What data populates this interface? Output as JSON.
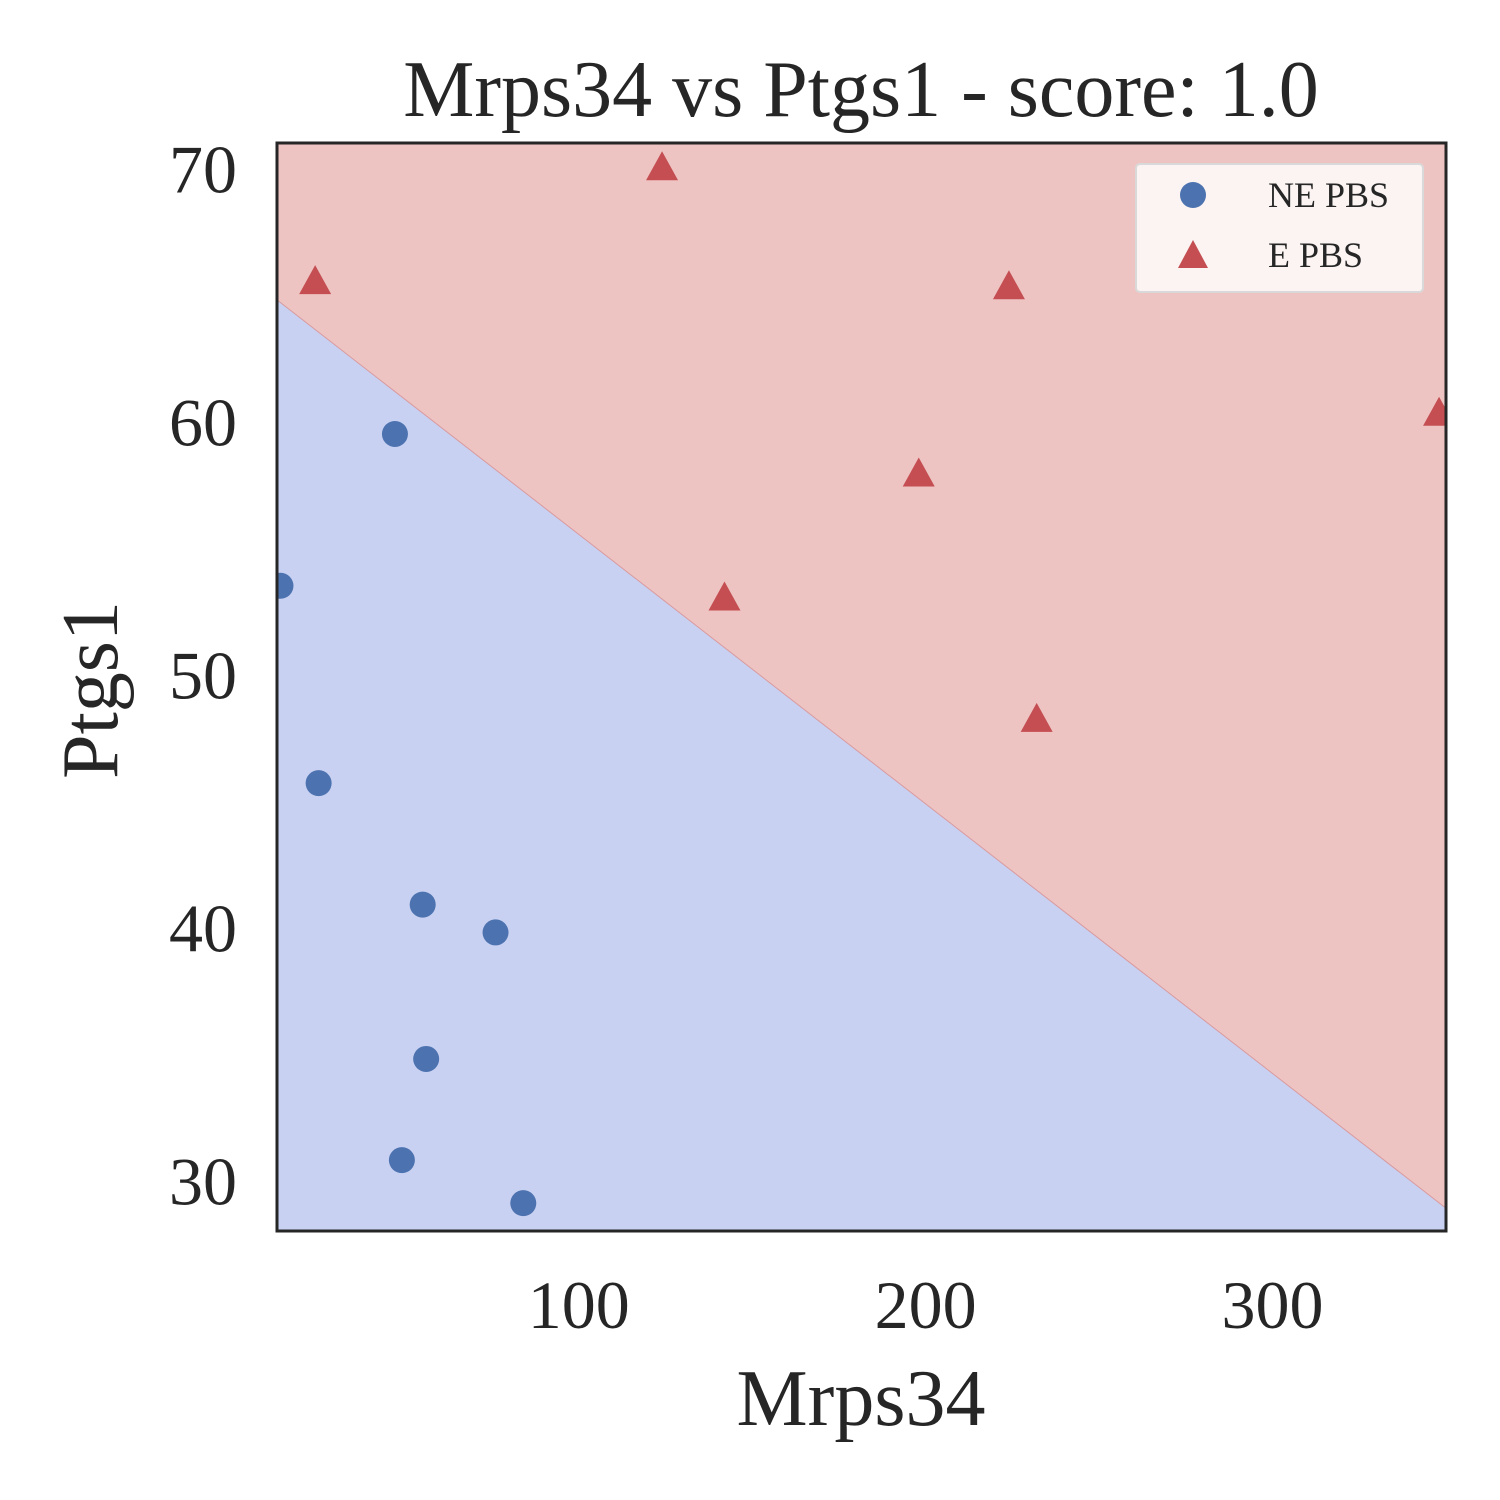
{
  "chart_data": {
    "type": "scatter",
    "title": "Mrps34 vs Ptgs1 - score: 1.0",
    "xlabel": "Mrps34",
    "ylabel": "Ptgs1",
    "xlim": [
      13,
      350
    ],
    "ylim": [
      28,
      71
    ],
    "xticks": [
      100,
      200,
      300
    ],
    "yticks": [
      30,
      40,
      50,
      60,
      70
    ],
    "grid": false,
    "legend_position": "top-right",
    "boundary": {
      "line": [
        [
          13,
          64.8
        ],
        [
          350,
          28.9
        ]
      ],
      "below_label": "NE PBS",
      "above_label": "E PBS",
      "below_color": "#c8d1f2",
      "above_color": "#eec4c3"
    },
    "series": [
      {
        "name": "NE PBS",
        "marker": "circle",
        "color": "#4c72b0",
        "x": [
          47,
          14,
          25,
          55,
          76,
          56,
          49,
          84
        ],
        "y": [
          59.5,
          53.5,
          45.7,
          40.9,
          39.8,
          34.8,
          30.8,
          29.1
        ]
      },
      {
        "name": "E PBS",
        "marker": "triangle",
        "color": "#c44e52",
        "x": [
          124,
          24,
          224,
          348,
          198,
          142,
          232
        ],
        "y": [
          70,
          65.5,
          65.3,
          60.3,
          57.9,
          53,
          48.2
        ]
      }
    ]
  }
}
